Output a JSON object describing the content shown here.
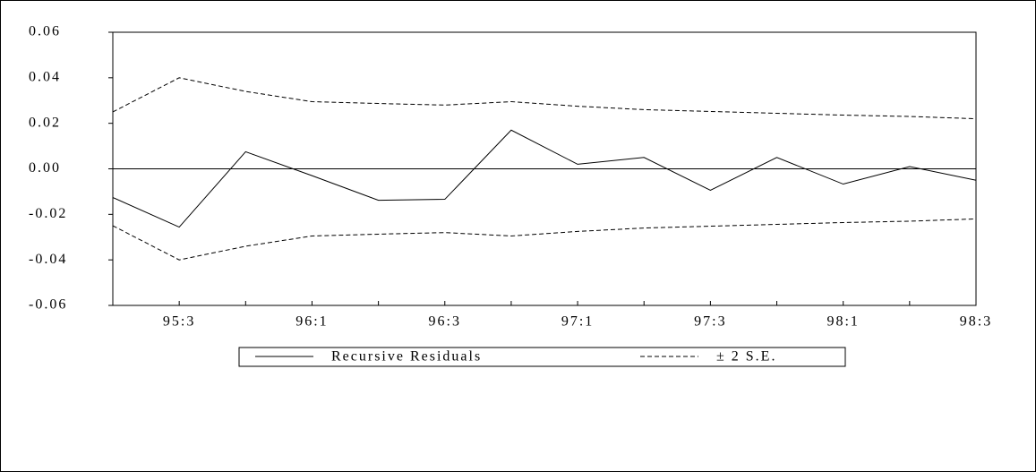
{
  "chart_data": {
    "type": "line",
    "categories": [
      null,
      "95:3",
      null,
      "96:1",
      null,
      "96:3",
      null,
      "97:1",
      null,
      "97:3",
      null,
      "98:1",
      null,
      "98:3"
    ],
    "ylim": [
      -0.06,
      0.06
    ],
    "yticks": [
      0.06,
      0.04,
      0.02,
      {
        "value": 0,
        "label": "0.00"
      },
      -0.02,
      -0.04,
      -0.06
    ],
    "series": [
      {
        "name": "Recursive Residuals",
        "color": "#000000",
        "dash": false,
        "values": [
          -0.0126,
          -0.0256,
          0.0075,
          -0.003,
          -0.0138,
          -0.0134,
          0.017,
          0.002,
          0.005,
          -0.0094,
          0.005,
          -0.0067,
          0.001,
          -0.005
        ]
      },
      {
        "name": "± 2 S.E.",
        "color": "#000000",
        "dash": true,
        "values": [
          0.025,
          0.04,
          0.034,
          0.0295,
          0.0287,
          0.028,
          0.0295,
          0.0275,
          0.026,
          0.0252,
          0.0244,
          0.0236,
          0.023,
          0.022
        ]
      },
      {
        "color": "#000000",
        "dash": true,
        "values": [
          -0.025,
          -0.04,
          -0.034,
          -0.0295,
          -0.0287,
          -0.028,
          -0.0295,
          -0.0275,
          -0.026,
          -0.0252,
          -0.0244,
          -0.0236,
          -0.023,
          -0.022
        ]
      }
    ]
  }
}
